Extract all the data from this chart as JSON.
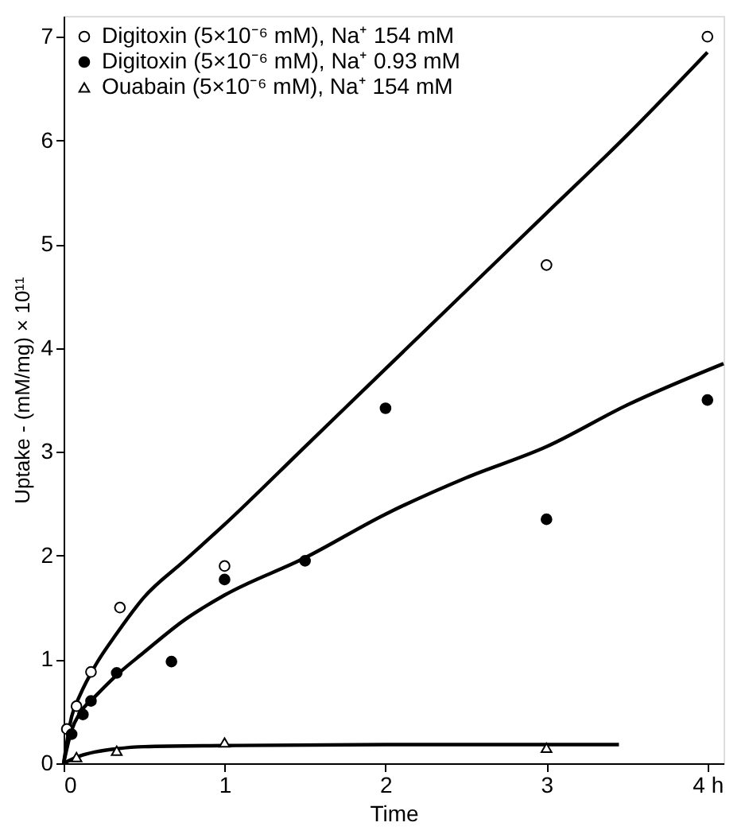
{
  "chart_data": {
    "type": "scatter",
    "xlabel": "Time",
    "ylabel": "Uptake - (mM/mg) × 10¹¹",
    "xlim": [
      0,
      4.1
    ],
    "ylim": [
      0,
      7.2
    ],
    "xticks": [
      0,
      1,
      2,
      3,
      {
        "value": 4,
        "label": "4 h"
      }
    ],
    "yticks": [
      0,
      1,
      2,
      3,
      4,
      5,
      6,
      7
    ],
    "grid": false,
    "legend": "top left",
    "series": [
      {
        "name": "Digitoxin (5×10⁻⁶ mM), Na⁺ 154 mM",
        "type": "scatter",
        "marker": "circle",
        "color": "#ffffff",
        "x": [
          0.02,
          0.08,
          0.17,
          0.35,
          1,
          3,
          4
        ],
        "values": [
          0.33,
          0.55,
          0.88,
          1.5,
          1.9,
          4.8,
          7.0
        ]
      },
      {
        "name": "Digitoxin (5×10⁻⁶ mM), Na⁺ 0.93 mM",
        "type": "scatter",
        "marker": "circle",
        "color": "#000000",
        "x": [
          0.05,
          0.12,
          0.17,
          0.33,
          0.67,
          1,
          1.5,
          2,
          3,
          4
        ],
        "values": [
          0.28,
          0.47,
          0.6,
          0.87,
          0.98,
          1.77,
          1.95,
          3.42,
          2.35,
          3.5
        ]
      },
      {
        "name": "Ouabain (5×10⁻⁶ mM), Na⁺ 154 mM",
        "type": "scatter",
        "marker": "triangle",
        "color": "#ffffff",
        "x": [
          0.08,
          0.33,
          1,
          3
        ],
        "values": [
          0.06,
          0.12,
          0.2,
          0.15
        ]
      },
      {
        "type": "line",
        "color": "#000000",
        "x": [
          0,
          0.05,
          0.1,
          0.2,
          0.33,
          0.5,
          0.75,
          1,
          1.5,
          2,
          2.5,
          3,
          3.5,
          4
        ],
        "values": [
          0,
          0.45,
          0.65,
          0.95,
          1.25,
          1.6,
          1.95,
          2.3,
          3.05,
          3.8,
          4.55,
          5.3,
          6.05,
          6.85
        ]
      },
      {
        "type": "line",
        "color": "#000000",
        "x": [
          0,
          0.05,
          0.1,
          0.2,
          0.33,
          0.5,
          0.75,
          1,
          1.5,
          2,
          2.5,
          3,
          3.5,
          4.1
        ],
        "values": [
          0,
          0.32,
          0.48,
          0.65,
          0.85,
          1.07,
          1.38,
          1.62,
          1.98,
          2.4,
          2.75,
          3.05,
          3.45,
          3.85
        ]
      },
      {
        "type": "line",
        "color": "#000000",
        "x": [
          0,
          0.1,
          0.2,
          0.33,
          0.5,
          1,
          2,
          3,
          3.45
        ],
        "values": [
          0,
          0.07,
          0.11,
          0.14,
          0.16,
          0.17,
          0.18,
          0.18,
          0.18
        ]
      }
    ]
  }
}
